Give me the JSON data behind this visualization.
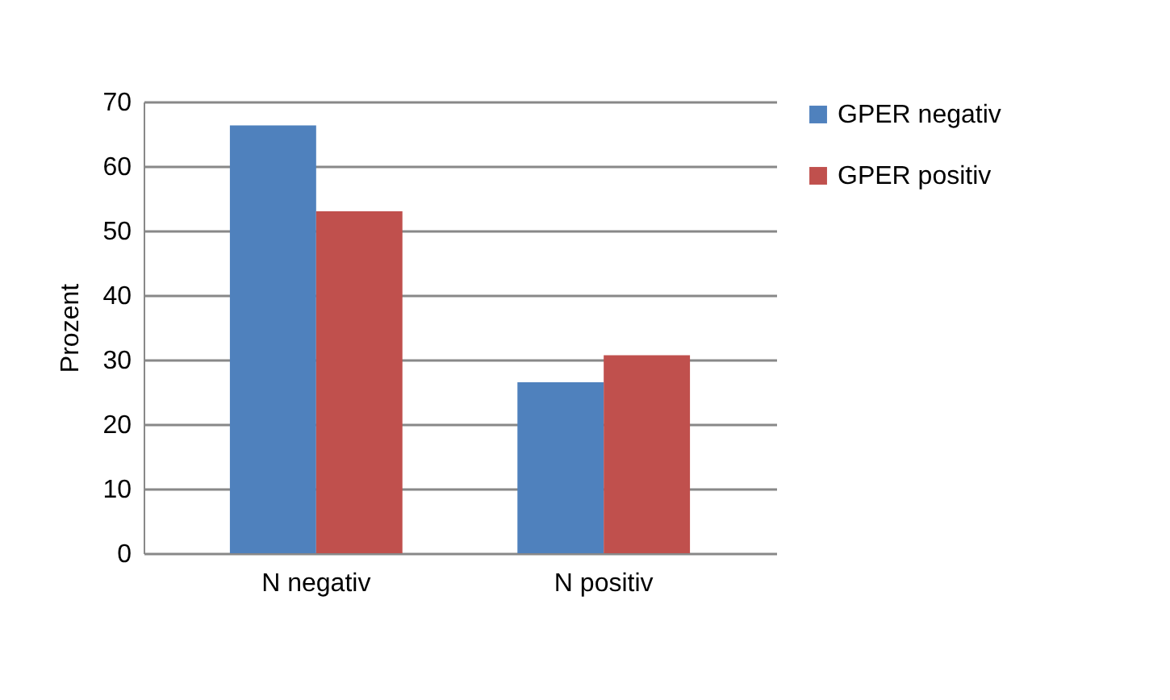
{
  "chart_data": {
    "type": "bar",
    "ylabel": "Prozent",
    "categories": [
      "N negativ",
      "N positiv"
    ],
    "series": [
      {
        "name": "GPER negativ",
        "color": "#4f81bd",
        "values": [
          66.3,
          26.5
        ]
      },
      {
        "name": "GPER positiv",
        "color": "#c0504d",
        "values": [
          53.0,
          30.7
        ]
      }
    ],
    "ylim": [
      0,
      70
    ],
    "yticks": [
      0,
      10,
      20,
      30,
      40,
      50,
      60,
      70
    ],
    "grid": "y",
    "legend": "right"
  }
}
